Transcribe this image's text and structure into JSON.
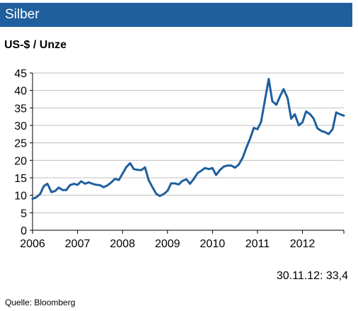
{
  "header": {
    "title": "Silber"
  },
  "unit_label": "US-$ / Unze",
  "footer": {
    "latest_value": "30.11.12: 33,4",
    "source": "Quelle:  Bloomberg"
  },
  "colors": {
    "header_bg": "#1f5f9e",
    "line": "#1f5f9e",
    "grid": "#bfbfbf"
  },
  "chart_data": {
    "type": "line",
    "title": "Silber",
    "ylabel": "US-$ / Unze",
    "xlabel": "",
    "xlim": [
      2006,
      2012.92
    ],
    "ylim": [
      0,
      45
    ],
    "yticks": [
      0,
      5,
      10,
      15,
      20,
      25,
      30,
      35,
      40,
      45
    ],
    "xticks": [
      "2006",
      "2007",
      "2008",
      "2009",
      "2010",
      "2011",
      "2012"
    ],
    "grid": true,
    "series": [
      {
        "name": "",
        "x": [
          2006.0,
          2006.08,
          2006.17,
          2006.25,
          2006.33,
          2006.42,
          2006.5,
          2006.58,
          2006.67,
          2006.75,
          2006.83,
          2006.92,
          2007.0,
          2007.08,
          2007.17,
          2007.25,
          2007.33,
          2007.42,
          2007.5,
          2007.58,
          2007.67,
          2007.75,
          2007.83,
          2007.92,
          2008.0,
          2008.08,
          2008.17,
          2008.25,
          2008.33,
          2008.42,
          2008.5,
          2008.58,
          2008.67,
          2008.75,
          2008.83,
          2008.92,
          2009.0,
          2009.08,
          2009.17,
          2009.25,
          2009.33,
          2009.42,
          2009.5,
          2009.58,
          2009.67,
          2009.75,
          2009.83,
          2009.92,
          2010.0,
          2010.08,
          2010.17,
          2010.25,
          2010.33,
          2010.42,
          2010.5,
          2010.58,
          2010.67,
          2010.75,
          2010.83,
          2010.92,
          2011.0,
          2011.08,
          2011.17,
          2011.25,
          2011.33,
          2011.42,
          2011.5,
          2011.58,
          2011.67,
          2011.75,
          2011.83,
          2011.92,
          2012.0,
          2012.08,
          2012.17,
          2012.25,
          2012.33,
          2012.42,
          2012.5,
          2012.58,
          2012.67,
          2012.75,
          2012.83,
          2012.92
        ],
        "y": [
          9.0,
          9.4,
          10.4,
          12.6,
          13.3,
          10.9,
          11.2,
          12.2,
          11.5,
          11.5,
          12.9,
          13.3,
          13.0,
          14.0,
          13.3,
          13.7,
          13.3,
          13.0,
          12.9,
          12.3,
          12.9,
          13.7,
          14.7,
          14.4,
          16.2,
          18.0,
          19.2,
          17.5,
          17.3,
          17.2,
          18.0,
          14.4,
          12.2,
          10.4,
          9.8,
          10.4,
          11.3,
          13.4,
          13.4,
          13.1,
          14.1,
          14.6,
          13.3,
          14.6,
          16.4,
          17.0,
          17.8,
          17.5,
          17.8,
          15.8,
          17.3,
          18.2,
          18.5,
          18.5,
          17.9,
          18.7,
          20.7,
          23.5,
          26.0,
          29.3,
          28.9,
          31.0,
          37.5,
          43.3,
          36.9,
          35.9,
          38.3,
          40.4,
          37.8,
          31.9,
          33.2,
          30.0,
          30.9,
          34.0,
          33.2,
          31.9,
          29.2,
          28.4,
          28.1,
          27.5,
          28.9,
          33.7,
          33.2,
          32.8
        ]
      }
    ]
  }
}
